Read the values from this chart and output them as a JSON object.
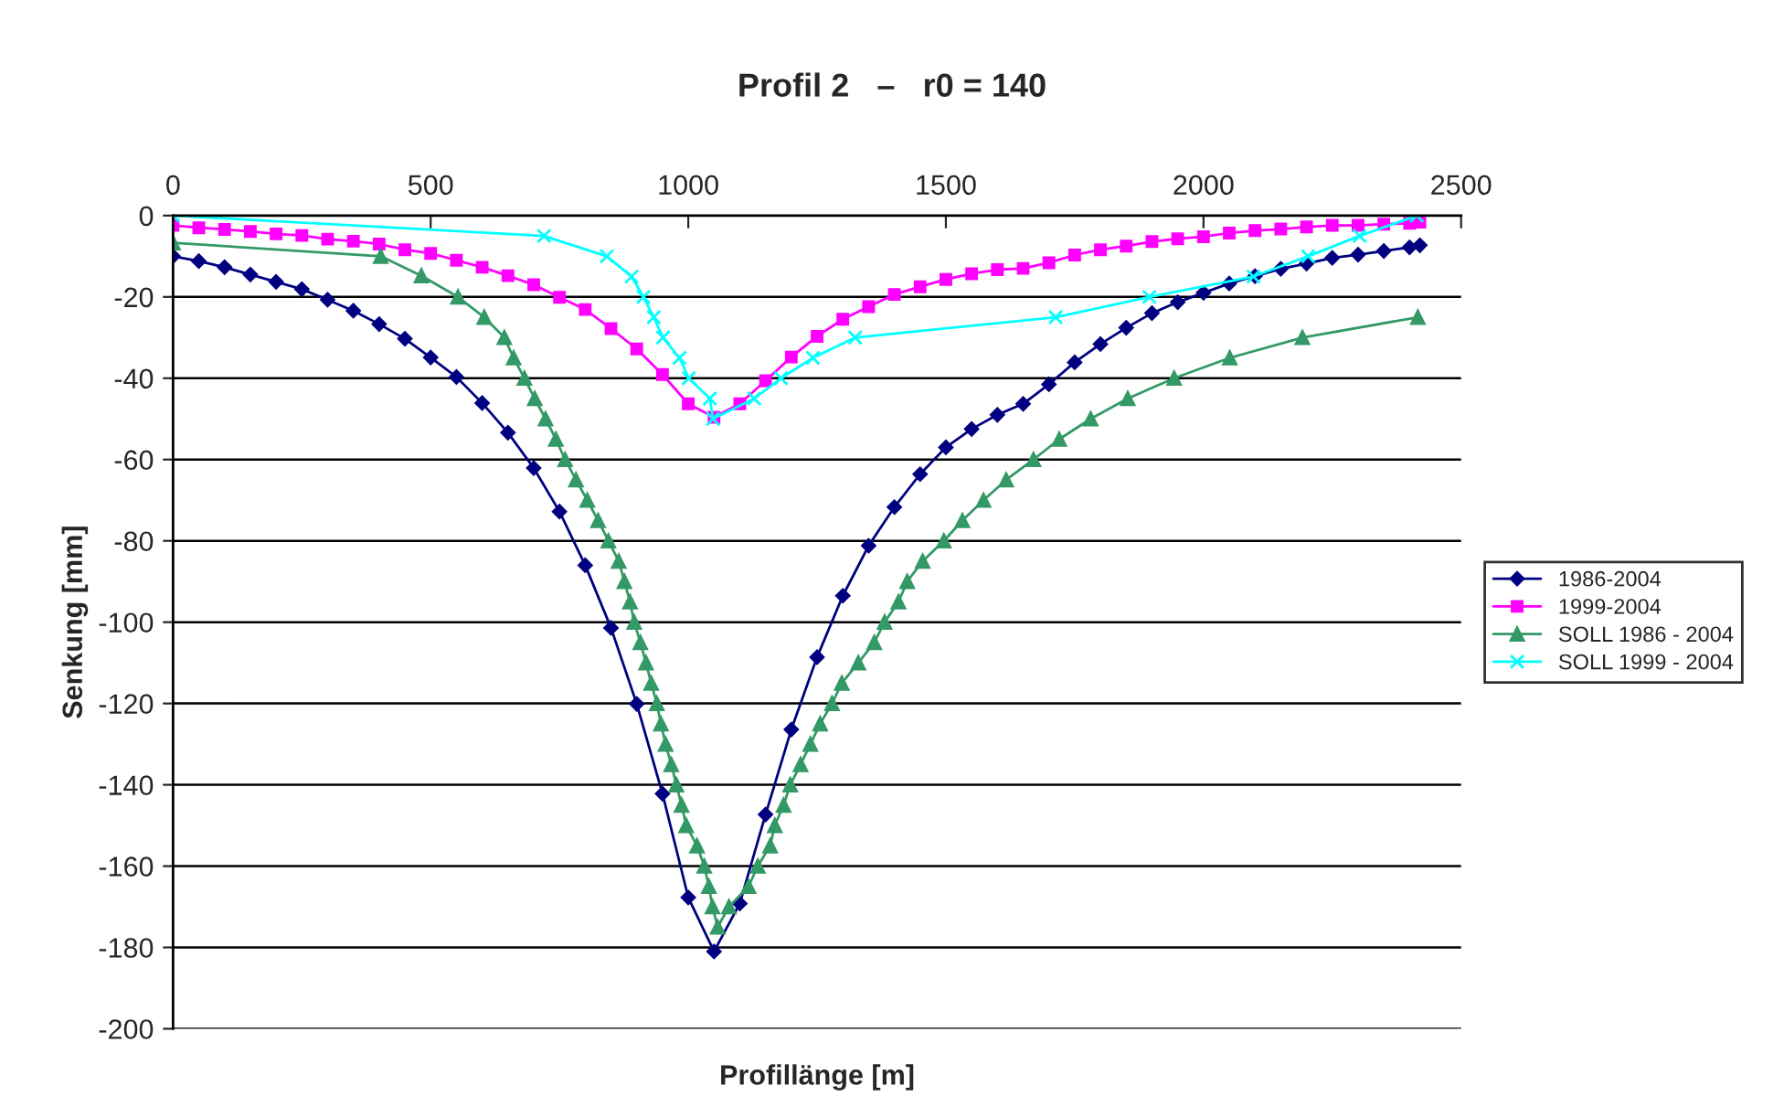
{
  "chart_data": {
    "type": "line",
    "title": "Profil 2   –   r0 = 140",
    "xlabel": "Profillänge [m]",
    "ylabel": "Senkung [mm]",
    "xlim": [
      0,
      2500
    ],
    "xticks": [
      0,
      500,
      1000,
      1500,
      2000,
      2500
    ],
    "ylim": [
      -200,
      0
    ],
    "yticks": [
      -200,
      -180,
      -160,
      -140,
      -120,
      -100,
      -80,
      -60,
      -40,
      -20,
      0
    ],
    "grid": "y",
    "legend": "right",
    "line_style": "solid",
    "series": [
      {
        "name": "1986-2004",
        "color": "#000080",
        "marker": "diamond",
        "x": [
          0,
          50,
          100,
          150,
          200,
          250,
          300,
          350,
          400,
          450,
          500,
          550,
          600,
          650,
          700,
          750,
          800,
          850,
          900,
          950,
          1000,
          1050,
          1100,
          1150,
          1200,
          1250,
          1300,
          1350,
          1400,
          1450,
          1500,
          1550,
          1600,
          1650,
          1700,
          1750,
          1800,
          1850,
          1900,
          1950,
          2000,
          2050,
          2100,
          2150,
          2200,
          2250,
          2300,
          2350,
          2400,
          2420
        ],
        "values": [
          -10,
          -11.2,
          -12.7,
          -14.5,
          -16.3,
          -18.1,
          -20.7,
          -23.4,
          -26.7,
          -30.3,
          -34.9,
          -39.7,
          -46.1,
          -53.4,
          -62.1,
          -72.8,
          -86,
          -101.4,
          -120.1,
          -142.2,
          -167.7,
          -181,
          -169.2,
          -147.3,
          -126.4,
          -108.6,
          -93.5,
          -81.2,
          -71.7,
          -63.6,
          -57,
          -52.5,
          -49,
          -46.3,
          -41.5,
          -36.1,
          -31.6,
          -27.6,
          -24,
          -21.3,
          -19,
          -16.7,
          -14.9,
          -13.1,
          -11.8,
          -10.4,
          -9.6,
          -8.7,
          -7.8,
          -7.3
        ]
      },
      {
        "name": "1999-2004",
        "color": "#ff00ff",
        "marker": "square",
        "x": [
          0,
          50,
          100,
          150,
          200,
          250,
          300,
          350,
          400,
          450,
          500,
          550,
          600,
          650,
          700,
          750,
          800,
          850,
          900,
          950,
          1000,
          1050,
          1100,
          1150,
          1200,
          1250,
          1300,
          1350,
          1400,
          1450,
          1500,
          1550,
          1600,
          1650,
          1700,
          1750,
          1800,
          1850,
          1900,
          1950,
          2000,
          2050,
          2100,
          2150,
          2200,
          2250,
          2300,
          2350,
          2400,
          2420
        ],
        "values": [
          -2.4,
          -3,
          -3.4,
          -3.9,
          -4.5,
          -4.9,
          -5.8,
          -6.3,
          -7,
          -8.4,
          -9.3,
          -11,
          -12.7,
          -14.8,
          -17,
          -20.1,
          -23.1,
          -27.8,
          -32.8,
          -39.1,
          -46.3,
          -49.6,
          -46.3,
          -40.6,
          -34.8,
          -29.7,
          -25.5,
          -22.4,
          -19.4,
          -17.5,
          -15.7,
          -14.3,
          -13.3,
          -13,
          -11.6,
          -9.7,
          -8.4,
          -7.5,
          -6.4,
          -5.7,
          -5.2,
          -4.3,
          -3.7,
          -3.3,
          -2.8,
          -2.4,
          -2.4,
          -2.1,
          -1.9,
          -1.6
        ]
      },
      {
        "name": "SOLL 1986 - 2004",
        "color": "#339966",
        "marker": "triangle",
        "x": [
          0,
          403,
          482,
          553,
          604,
          643,
          661,
          682,
          702,
          723,
          743,
          761,
          782,
          804,
          825,
          845,
          865,
          876,
          887,
          895,
          907,
          918,
          928,
          939,
          947,
          956,
          967,
          977,
          987,
          996,
          1017,
          1031,
          1040,
          1047,
          1057,
          1079,
          1117,
          1135,
          1159,
          1168,
          1185,
          1198,
          1218,
          1237,
          1256,
          1279,
          1298,
          1330,
          1361,
          1381,
          1408,
          1425,
          1455,
          1496,
          1532,
          1573,
          1617,
          1670,
          1720,
          1781,
          1853,
          1943,
          2051,
          2192,
          2416
        ],
        "values": [
          -6.7,
          -10,
          -14.8,
          -20,
          -25,
          -30,
          -35,
          -40,
          -45,
          -50,
          -55,
          -60,
          -65,
          -70,
          -75,
          -80,
          -85,
          -90,
          -95,
          -100,
          -105,
          -110,
          -115,
          -120,
          -125,
          -130,
          -135,
          -140,
          -145,
          -150,
          -155,
          -160,
          -165,
          -170,
          -175,
          -170,
          -165,
          -160,
          -155,
          -150,
          -145,
          -140,
          -135,
          -130,
          -125,
          -120,
          -115,
          -110,
          -105,
          -100,
          -95,
          -90,
          -85,
          -80,
          -75,
          -70,
          -65,
          -60,
          -55,
          -50,
          -45,
          -40,
          -35,
          -30,
          -25
        ]
      },
      {
        "name": "SOLL 1999 - 2004",
        "color": "#00ffff",
        "marker": "cross",
        "x": [
          0,
          720,
          842,
          890,
          913,
          933,
          951,
          983,
          1001,
          1042,
          1048,
          1128,
          1180,
          1242,
          1324,
          1713,
          1895,
          2097,
          2203,
          2303,
          2414
        ],
        "values": [
          0,
          -5,
          -10,
          -15,
          -20,
          -25,
          -30,
          -35,
          -40,
          -45,
          -50,
          -45,
          -40,
          -35,
          -30,
          -25,
          -20,
          -15,
          -10,
          -5,
          0
        ]
      }
    ]
  }
}
